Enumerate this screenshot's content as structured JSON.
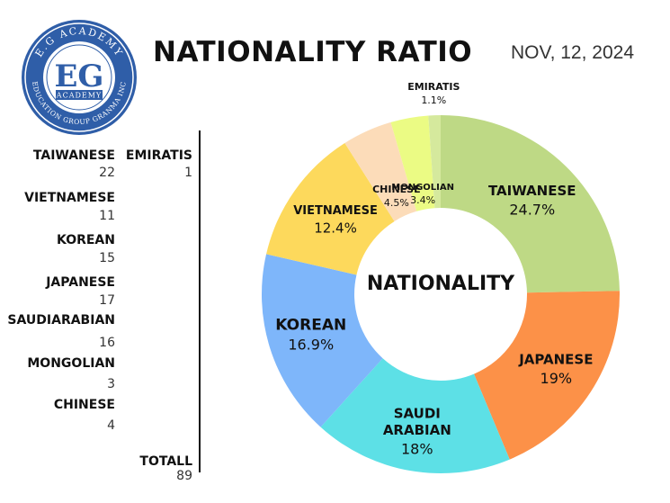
{
  "title": "NATIONALITY RATIO",
  "date": "NOV, 12, 2024",
  "logo": {
    "initials": "EG",
    "ring_top": "E.G ACADEMY",
    "ring_bottom": "EDUCATION GROUP GRANMA INC",
    "inner": "ACADEMY"
  },
  "table": {
    "rows": [
      {
        "label": "TAIWANESE",
        "value": "22"
      },
      {
        "label": "VIETNAMESE",
        "value": "11"
      },
      {
        "label": "KOREAN",
        "value": "15"
      },
      {
        "label": "JAPANESE",
        "value": "17"
      },
      {
        "label": "SAUDIARABIAN",
        "value": "16"
      },
      {
        "label": "MONGOLIAN",
        "value": "3"
      },
      {
        "label": "CHINESE",
        "value": "4"
      }
    ],
    "extra": {
      "label": "EMIRATIS",
      "value": "1"
    },
    "total": {
      "label": "TOTALL",
      "value": "89"
    }
  },
  "chart_data": {
    "type": "pie",
    "center_label": "NATIONALITY",
    "slices": [
      {
        "name": "TAIWANESE",
        "value": 24.7,
        "label": "TAIWANESE",
        "pct": "24.7%",
        "color": "#bed985"
      },
      {
        "name": "JAPANESE",
        "value": 19.0,
        "label": "JAPANESE",
        "pct": "19%",
        "color": "#fc9148"
      },
      {
        "name": "SAUDI ARABIAN",
        "value": 18.0,
        "label": "SAUDI\nARABIAN",
        "pct": "18%",
        "color": "#5de0e6"
      },
      {
        "name": "KOREAN",
        "value": 16.9,
        "label": "KOREAN",
        "pct": "16.9%",
        "color": "#7eb6fa"
      },
      {
        "name": "VIETNAMESE",
        "value": 12.4,
        "label": "VIETNAMESE",
        "pct": "12.4%",
        "color": "#fdd95c"
      },
      {
        "name": "CHINESE",
        "value": 4.5,
        "label": "CHINESE",
        "pct": "4.5%",
        "color": "#fcdcb9"
      },
      {
        "name": "MONGOLIAN",
        "value": 3.4,
        "label": "MONGOLIAN",
        "pct": "3.4%",
        "color": "#ebfb84"
      },
      {
        "name": "EMIRATIS",
        "value": 1.1,
        "label": "EMIRATIS",
        "pct": "1.1%",
        "color": "#d5e99d"
      }
    ]
  }
}
